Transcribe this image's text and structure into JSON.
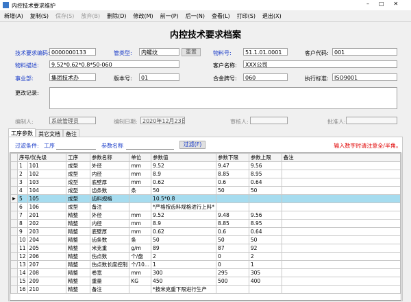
{
  "window": {
    "title": "内控技术要求维护"
  },
  "toolbar": [
    "新增(A)",
    "复制(S)",
    "保存(S)",
    "放弃(B)",
    "删除(D)",
    "修改(M)",
    "前一(P)",
    "后一(N)",
    "查看(L)",
    "打印(S)",
    "退出(X)"
  ],
  "header": {
    "title": "内控技术要求档案"
  },
  "form": {
    "code": {
      "label": "技术要求编码:",
      "value": "0000000133"
    },
    "tube_type": {
      "label": "管类型:",
      "value": "内螺纹"
    },
    "reset": "重置",
    "material_no": {
      "label": "物料号:",
      "value": "51.1.01.0001"
    },
    "customer_code": {
      "label": "客户代码:",
      "value": "001"
    },
    "material_desc": {
      "label": "物料描述:",
      "value": "9.52*0.62*0.8*50-060"
    },
    "customer_name": {
      "label": "客户名称:",
      "value": "XXX公司"
    },
    "division": {
      "label": "事业部:",
      "value": "集团技术办"
    },
    "version": {
      "label": "版本号:",
      "value": "01"
    },
    "alloy": {
      "label": "合金牌号:",
      "value": "060"
    },
    "standard": {
      "label": "执行标准:",
      "value": "ISO9001"
    },
    "change_log": {
      "label": "更改记录:"
    },
    "author": {
      "label": "编制人:",
      "value": "系统管理员"
    },
    "date": {
      "label": "编制日期:",
      "value": "2020年12月23日"
    },
    "reviewer": {
      "label": "审核人:"
    },
    "approver": {
      "label": "批准人:"
    }
  },
  "tabs": [
    "工序参数",
    "其它文档",
    "备注"
  ],
  "filter": {
    "label": "过滤条件:",
    "process": "工序",
    "param_name": "参数名称",
    "button": "过滤(F)",
    "notice": "输入数字时请注意全/半角。"
  },
  "table": {
    "columns": [
      "序号/优先级",
      "工序",
      "参数名称",
      "单位",
      "参数值",
      "参数下限",
      "参数上限",
      "备注"
    ],
    "selected_row": 4,
    "rows": [
      [
        "1",
        "101",
        "成型",
        "外径",
        "mm",
        "9.52",
        "9.47",
        "9.56",
        null
      ],
      [
        "2",
        "102",
        "成型",
        "内径",
        "mm",
        "8.9",
        "8.85",
        "8.95",
        null
      ],
      [
        "3",
        "103",
        "成型",
        "底壁厚",
        "mm",
        "0.62",
        "0.6",
        "0.64",
        null
      ],
      [
        "4",
        "104",
        "成型",
        "齿条数",
        "条",
        "50",
        "50",
        "50",
        null
      ],
      [
        "5",
        "105",
        "成型",
        "齿料规格",
        null,
        "10.5*0.8",
        null,
        null,
        null
      ],
      [
        "6",
        "106",
        "成型",
        "备注",
        null,
        "*严格按齿料规格进行上料*",
        null,
        null,
        null
      ],
      [
        "7",
        "201",
        "精整",
        "外径",
        "mm",
        "9.52",
        "9.48",
        "9.56",
        null
      ],
      [
        "8",
        "202",
        "精整",
        "内径",
        "mm",
        "8.9",
        "8.85",
        "8.95",
        null
      ],
      [
        "9",
        "203",
        "精整",
        "底壁厚",
        "mm",
        "0.62",
        "0.6",
        "0.64",
        null
      ],
      [
        "10",
        "204",
        "精整",
        "齿条数",
        "条",
        "50",
        "50",
        "50",
        null
      ],
      [
        "11",
        "205",
        "精整",
        "米克重",
        "g/m",
        "89",
        "87",
        "92",
        null
      ],
      [
        "12",
        "206",
        "精整",
        "伤点数",
        "个/盘",
        "2",
        "0",
        "2",
        null
      ],
      [
        "13",
        "207",
        "精整",
        "伤点数长度控制",
        "个/10...",
        "1",
        "0",
        "1",
        null
      ],
      [
        "14",
        "208",
        "精整",
        "卷宽",
        "mm",
        "300",
        "295",
        "305",
        null
      ],
      [
        "15",
        "209",
        "精整",
        "重量",
        "KG",
        "450",
        "500",
        "400",
        null
      ],
      [
        "16",
        "210",
        "精整",
        "备注",
        null,
        "*按米克重下限进行生产",
        null,
        null,
        null
      ]
    ]
  }
}
